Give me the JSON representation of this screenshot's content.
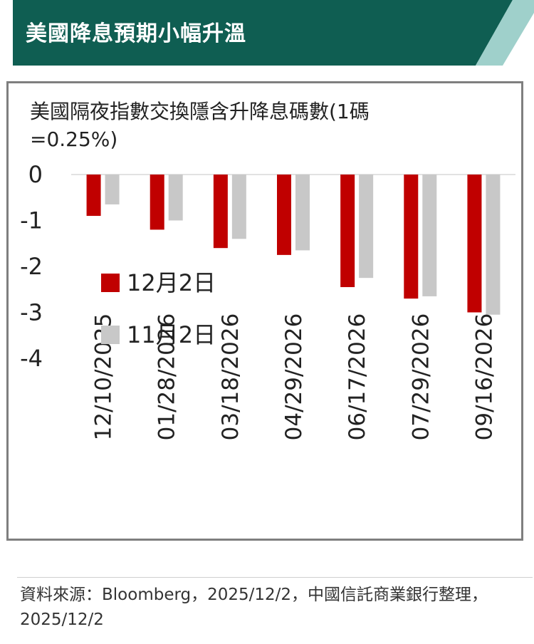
{
  "banner": {
    "title": "美國降息預期小幅升溫",
    "color": "#0f5e52",
    "accent_color": "#9fd0cb"
  },
  "chart_data": {
    "type": "bar",
    "title": "美國隔夜指數交換隱含升降息碼數(1碼=0.25%)",
    "xlabel": "",
    "ylabel": "",
    "categories": [
      "12/10/2025",
      "01/28/2026",
      "03/18/2026",
      "04/29/2026",
      "06/17/2026",
      "07/29/2026",
      "09/16/2026"
    ],
    "series": [
      {
        "name": "12月2日",
        "color": "#c00000",
        "values": [
          -0.9,
          -1.2,
          -1.6,
          -1.75,
          -2.45,
          -2.7,
          -3.0
        ]
      },
      {
        "name": "11月2日",
        "color": "#c8c8c8",
        "values": [
          -0.65,
          -1.0,
          -1.4,
          -1.65,
          -2.25,
          -2.65,
          -3.05
        ]
      }
    ],
    "ylim": [
      -4,
      0
    ],
    "yticks": [
      "0",
      "-1",
      "-2",
      "-3",
      "-4"
    ],
    "grid": false,
    "legend_position": "bottom-left",
    "zero_line_color": "#d9d9d9"
  },
  "source_note": "資料來源：Bloomberg，2025/12/2，中國信託商業銀行整理，2025/12/2"
}
